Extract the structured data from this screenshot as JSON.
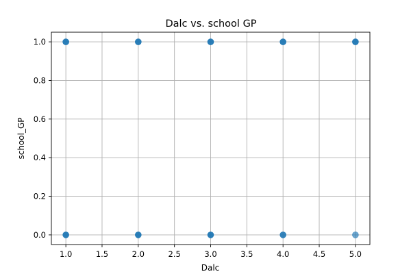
{
  "chart_data": {
    "type": "scatter",
    "title": "Dalc vs. school GP",
    "xlabel": "Dalc",
    "ylabel": "school_GP",
    "xlim": [
      0.8,
      5.2
    ],
    "ylim": [
      -0.05,
      1.05
    ],
    "xticks": [
      1.0,
      1.5,
      2.0,
      2.5,
      3.0,
      3.5,
      4.0,
      4.5,
      5.0
    ],
    "xtick_labels": [
      "1.0",
      "1.5",
      "2.0",
      "2.5",
      "3.0",
      "3.5",
      "4.0",
      "4.5",
      "5.0"
    ],
    "yticks": [
      0.0,
      0.2,
      0.4,
      0.6,
      0.8,
      1.0
    ],
    "ytick_labels": [
      "0.0",
      "0.2",
      "0.4",
      "0.6",
      "0.8",
      "1.0"
    ],
    "grid": true,
    "marker_color": "#1f77b4",
    "points": [
      {
        "x": 1,
        "y": 1,
        "alpha": 0.95
      },
      {
        "x": 2,
        "y": 1,
        "alpha": 0.95
      },
      {
        "x": 3,
        "y": 1,
        "alpha": 0.95
      },
      {
        "x": 4,
        "y": 1,
        "alpha": 0.95
      },
      {
        "x": 5,
        "y": 1,
        "alpha": 0.95
      },
      {
        "x": 1,
        "y": 0,
        "alpha": 0.95
      },
      {
        "x": 2,
        "y": 0,
        "alpha": 0.95
      },
      {
        "x": 3,
        "y": 0,
        "alpha": 0.95
      },
      {
        "x": 4,
        "y": 0,
        "alpha": 0.9
      },
      {
        "x": 5,
        "y": 0,
        "alpha": 0.65
      }
    ]
  }
}
